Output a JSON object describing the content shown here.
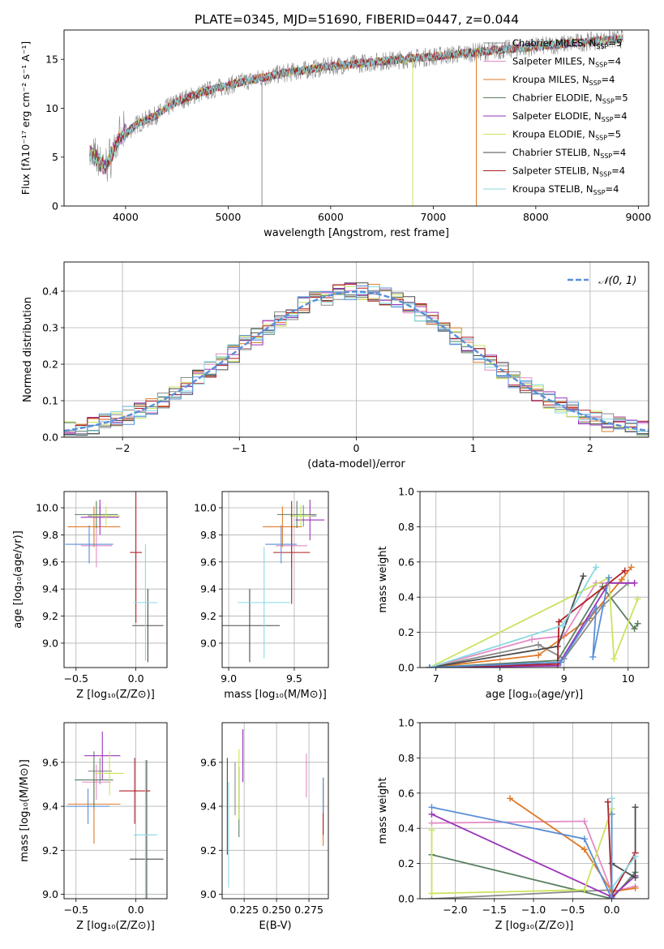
{
  "figure_title": "PLATE=0345, MJD=51690, FIBERID=0447, z=0.044",
  "colors": {
    "Chabrier MILES": "#8a8a8a",
    "Salpeter MILES": "#e38cc6",
    "Kroupa MILES": "#e07a28",
    "Chabrier ELODIE": "#5a7f62",
    "Salpeter ELODIE": "#9a35b8",
    "Kroupa ELODIE": "#c9e45c",
    "Chabrier STELIB": "#4a4a4a",
    "Salpeter STELIB": "#b01f24",
    "Kroupa STELIB": "#8ad8e2",
    "gaussian": "#5a8fd6"
  },
  "chart_data": [
    {
      "id": "spectrum",
      "type": "line",
      "title": "PLATE=0345, MJD=51690, FIBERID=0447, z=0.044",
      "xlabel": "wavelength [Angstrom, rest frame]",
      "ylabel": "Flux [fλ10⁻¹⁷ erg cm⁻² s⁻¹ A⁻¹]",
      "xlim": [
        3400,
        9100
      ],
      "ylim": [
        0,
        18
      ],
      "xticks": [
        4000,
        5000,
        6000,
        7000,
        8000,
        9000
      ],
      "yticks": [
        0,
        5,
        10,
        15
      ],
      "legend_position": "top-right",
      "legend": [
        {
          "series": "Chabrier MILES",
          "label": "Chabrier MILES, N",
          "sub": "SSP",
          "tail": "=5"
        },
        {
          "series": "Salpeter MILES",
          "label": "Salpeter MILES, N",
          "sub": "SSP",
          "tail": "=4"
        },
        {
          "series": "Kroupa MILES",
          "label": "Kroupa MILES, N",
          "sub": "SSP",
          "tail": "=4"
        },
        {
          "series": "Chabrier ELODIE",
          "label": "Chabrier ELODIE, N",
          "sub": "SSP",
          "tail": "=5"
        },
        {
          "series": "Salpeter ELODIE",
          "label": "Salpeter ELODIE, N",
          "sub": "SSP",
          "tail": "=4"
        },
        {
          "series": "Kroupa ELODIE",
          "label": "Kroupa ELODIE, N",
          "sub": "SSP",
          "tail": "=5"
        },
        {
          "series": "Chabrier STELIB",
          "label": "Chabrier STELIB, N",
          "sub": "SSP",
          "tail": "=4"
        },
        {
          "series": "Salpeter STELIB",
          "label": "Salpeter STELIB, N",
          "sub": "SSP",
          "tail": "=4"
        },
        {
          "series": "Kroupa STELIB",
          "label": "Kroupa STELIB, N",
          "sub": "SSP",
          "tail": "=4"
        }
      ],
      "continuum": {
        "x": [
          3650,
          3800,
          3950,
          4100,
          4300,
          4500,
          4800,
          5100,
          5500,
          6000,
          6500,
          7000,
          7500,
          8000,
          8500,
          8850
        ],
        "y": [
          5.5,
          4.0,
          7.0,
          8.3,
          9.3,
          10.7,
          11.8,
          12.6,
          13.5,
          14.3,
          14.8,
          15.3,
          15.8,
          16.3,
          16.8,
          17.1
        ]
      },
      "dips": [
        {
          "series": "Kroupa ELODIE",
          "x": 6800,
          "y": 0
        },
        {
          "series": "Kroupa MILES",
          "x": 7420,
          "y": 0
        },
        {
          "series": "Chabrier MILES",
          "x": 5330,
          "y": 0
        }
      ],
      "grid": false
    },
    {
      "id": "residuals",
      "type": "line",
      "xlabel": "(data-model)/error",
      "ylabel": "Normed distribution",
      "xlim": [
        -2.5,
        2.5
      ],
      "ylim": [
        0,
        0.48
      ],
      "xticks": [
        -2,
        -1,
        0,
        1,
        2
      ],
      "yticks": [
        0.0,
        0.1,
        0.2,
        0.3,
        0.4
      ],
      "grid": true,
      "legend_position": "top-right",
      "legend_label": "𝒩(0, 1)",
      "gaussian": {
        "mean": 0,
        "sigma": 1
      }
    },
    {
      "id": "age-vs-Z",
      "type": "scatter",
      "xlabel": "Z [log₁₀(Z/Z⊙)]",
      "ylabel": "age  [log₁₀(age/yr)]",
      "xlim": [
        -0.6,
        0.26
      ],
      "ylim": [
        8.82,
        10.12
      ],
      "xticks": [
        -0.5,
        0.0
      ],
      "yticks": [
        9.0,
        9.2,
        9.4,
        9.6,
        9.8,
        10.0
      ],
      "grid": true,
      "points": [
        {
          "series": "Chabrier MILES",
          "x": -0.3,
          "y": 9.94,
          "xerr": 0.1,
          "yerr": 0.08
        },
        {
          "series": "Salpeter MILES",
          "x": -0.33,
          "y": 9.72,
          "xerr": 0.13,
          "yerr": 0.16
        },
        {
          "series": "Kroupa MILES",
          "x": -0.35,
          "y": 9.86,
          "xerr": 0.22,
          "yerr": 0.15
        },
        {
          "series": "Chabrier ELODIE",
          "x": -0.33,
          "y": 9.95,
          "xerr": 0.18,
          "yerr": 0.1
        },
        {
          "series": "Salpeter ELODIE",
          "x": -0.3,
          "y": 9.93,
          "xerr": 0.16,
          "yerr": 0.13
        },
        {
          "series": "Kroupa ELODIE",
          "x": -0.25,
          "y": 9.94,
          "xerr": 0.12,
          "yerr": 0.07
        },
        {
          "series": "Chabrier STELIB",
          "x": 0.1,
          "y": 9.13,
          "xerr": 0.13,
          "yerr": 0.27
        },
        {
          "series": "Salpeter STELIB",
          "x": 0.0,
          "y": 9.67,
          "xerr": 0.05,
          "yerr": 0.52
        },
        {
          "series": "Kroupa STELIB",
          "x": 0.08,
          "y": 9.3,
          "xerr": 0.1,
          "yerr": 0.43
        },
        {
          "series": "gaussian",
          "x": -0.39,
          "y": 9.73,
          "xerr": 0.2,
          "yerr": 0.14
        }
      ]
    },
    {
      "id": "age-vs-mass",
      "type": "scatter",
      "xlabel": "mass [log₁₀(M/M⊙)]",
      "ylabel": "",
      "xlim": [
        8.95,
        9.76
      ],
      "ylim": [
        8.82,
        10.12
      ],
      "xticks": [
        9.0,
        9.5
      ],
      "yticks": [
        9.0,
        9.2,
        9.4,
        9.6,
        9.8,
        10.0
      ],
      "grid": true,
      "points": [
        {
          "series": "Chabrier MILES",
          "x": 9.57,
          "y": 9.94,
          "xerr": 0.1,
          "yerr": 0.08
        },
        {
          "series": "Salpeter MILES",
          "x": 9.48,
          "y": 9.72,
          "xerr": 0.12,
          "yerr": 0.16
        },
        {
          "series": "Kroupa MILES",
          "x": 9.41,
          "y": 9.86,
          "xerr": 0.15,
          "yerr": 0.15
        },
        {
          "series": "Chabrier ELODIE",
          "x": 9.52,
          "y": 9.95,
          "xerr": 0.15,
          "yerr": 0.1
        },
        {
          "series": "Salpeter ELODIE",
          "x": 9.62,
          "y": 9.91,
          "xerr": 0.11,
          "yerr": 0.15
        },
        {
          "series": "Kroupa ELODIE",
          "x": 9.55,
          "y": 9.94,
          "xerr": 0.08,
          "yerr": 0.08
        },
        {
          "series": "Chabrier STELIB",
          "x": 9.16,
          "y": 9.13,
          "xerr": 0.23,
          "yerr": 0.27
        },
        {
          "series": "Salpeter STELIB",
          "x": 9.48,
          "y": 9.67,
          "xerr": 0.14,
          "yerr": 0.38
        },
        {
          "series": "Kroupa STELIB",
          "x": 9.27,
          "y": 9.3,
          "xerr": 0.2,
          "yerr": 0.41
        },
        {
          "series": "gaussian",
          "x": 9.4,
          "y": 9.73,
          "xerr": 0.12,
          "yerr": 0.14
        }
      ]
    },
    {
      "id": "massweight-vs-age",
      "type": "line",
      "xlabel": "age  [log₁₀(age/yr)]",
      "ylabel": "mass weight",
      "xlim": [
        6.75,
        10.32
      ],
      "ylim": [
        0,
        1
      ],
      "xticks": [
        7,
        8,
        9,
        10
      ],
      "yticks": [
        0.0,
        0.2,
        0.4,
        0.6,
        0.8,
        1.0
      ],
      "grid": true,
      "series": [
        {
          "name": "Chabrier MILES",
          "x": [
            6.9,
            8.6,
            9.0,
            9.6,
            10.0
          ],
          "y": [
            0.0,
            0.13,
            0.05,
            0.35,
            0.48
          ]
        },
        {
          "name": "Salpeter MILES",
          "x": [
            6.9,
            8.5,
            9.0,
            9.5,
            10.1
          ],
          "y": [
            0.0,
            0.16,
            0.18,
            0.48,
            0.48
          ]
        },
        {
          "name": "Kroupa MILES",
          "x": [
            6.9,
            8.6,
            9.4,
            9.9,
            10.05
          ],
          "y": [
            0.0,
            0.07,
            0.28,
            0.5,
            0.57
          ]
        },
        {
          "name": "Chabrier ELODIE",
          "x": [
            6.9,
            8.9,
            9.6,
            10.1,
            10.15
          ],
          "y": [
            0.0,
            0.04,
            0.46,
            0.22,
            0.25
          ]
        },
        {
          "name": "Salpeter ELODIE",
          "x": [
            6.9,
            8.9,
            9.7,
            10.1
          ],
          "y": [
            0.0,
            0.01,
            0.48,
            0.48
          ]
        },
        {
          "name": "Kroupa ELODIE",
          "x": [
            6.9,
            9.7,
            9.78,
            10.15
          ],
          "y": [
            0.0,
            0.51,
            0.05,
            0.39
          ]
        },
        {
          "name": "Chabrier STELIB",
          "x": [
            6.9,
            8.9,
            9.3
          ],
          "y": [
            0.0,
            0.12,
            0.52
          ]
        },
        {
          "name": "Salpeter STELIB",
          "x": [
            6.9,
            8.9,
            8.92,
            9.95
          ],
          "y": [
            0.0,
            0.02,
            0.26,
            0.55
          ]
        },
        {
          "name": "Kroupa STELIB",
          "x": [
            6.9,
            8.98,
            9.5
          ],
          "y": [
            0.0,
            0.24,
            0.57
          ]
        },
        {
          "name": "gaussian",
          "x": [
            6.9,
            8.95,
            9.5,
            9.45,
            9.7
          ],
          "y": [
            0.0,
            0.03,
            0.34,
            0.06,
            0.51
          ]
        }
      ]
    },
    {
      "id": "mass-vs-Z",
      "type": "scatter",
      "xlabel": "Z [log₁₀(Z/Z⊙)]",
      "ylabel": "mass [log₁₀(M/M⊙)]",
      "xlim": [
        -0.6,
        0.26
      ],
      "ylim": [
        8.98,
        9.78
      ],
      "xticks": [
        -0.5,
        0.0
      ],
      "yticks": [
        9.0,
        9.2,
        9.4,
        9.6
      ],
      "grid": true,
      "points": [
        {
          "series": "Chabrier MILES",
          "x": -0.3,
          "y": 9.56,
          "xerr": 0.1,
          "yerr": 0.06
        },
        {
          "series": "Salpeter MILES",
          "x": -0.33,
          "y": 9.51,
          "xerr": 0.12,
          "yerr": 0.08
        },
        {
          "series": "Kroupa MILES",
          "x": -0.35,
          "y": 9.41,
          "xerr": 0.22,
          "yerr": 0.18
        },
        {
          "series": "Chabrier ELODIE",
          "x": -0.35,
          "y": 9.52,
          "xerr": 0.16,
          "yerr": 0.13
        },
        {
          "series": "Salpeter ELODIE",
          "x": -0.28,
          "y": 9.63,
          "xerr": 0.15,
          "yerr": 0.11
        },
        {
          "series": "Kroupa ELODIE",
          "x": -0.22,
          "y": 9.55,
          "xerr": 0.12,
          "yerr": 0.1
        },
        {
          "series": "Chabrier STELIB",
          "x": 0.09,
          "y": 9.16,
          "xerr": 0.14,
          "yerr": 0.45
        },
        {
          "series": "Salpeter STELIB",
          "x": -0.01,
          "y": 9.47,
          "xerr": 0.13,
          "yerr": 0.15
        },
        {
          "series": "Kroupa STELIB",
          "x": 0.08,
          "y": 9.27,
          "xerr": 0.1,
          "yerr": 0.34
        },
        {
          "series": "gaussian",
          "x": -0.4,
          "y": 9.4,
          "xerr": 0.18,
          "yerr": 0.08
        }
      ]
    },
    {
      "id": "mass-vs-EBV",
      "type": "scatter",
      "xlabel": "E(B-V)",
      "ylabel": "",
      "xlim": [
        0.208,
        0.29
      ],
      "ylim": [
        8.98,
        9.78
      ],
      "xticks": [
        0.225,
        0.25,
        0.275
      ],
      "xtick_labels": [
        "0.225",
        "0.250",
        "0.275"
      ],
      "yticks": [
        9.0,
        9.2,
        9.4,
        9.6
      ],
      "grid": true,
      "points": [
        {
          "series": "Chabrier MILES",
          "x": 0.218,
          "y": 9.48,
          "yerr": 0.12
        },
        {
          "series": "Salpeter MILES",
          "x": 0.273,
          "y": 9.54,
          "yerr": 0.1
        },
        {
          "series": "Kroupa MILES",
          "x": 0.286,
          "y": 9.36,
          "yerr": 0.14
        },
        {
          "series": "Chabrier ELODIE",
          "x": 0.221,
          "y": 9.42,
          "yerr": 0.16
        },
        {
          "series": "Salpeter ELODIE",
          "x": 0.224,
          "y": 9.63,
          "yerr": 0.12
        },
        {
          "series": "Kroupa ELODIE",
          "x": 0.221,
          "y": 9.5,
          "yerr": 0.16
        },
        {
          "series": "Chabrier STELIB",
          "x": 0.212,
          "y": 9.4,
          "yerr": 0.22
        },
        {
          "series": "Salpeter STELIB",
          "x": 0.286,
          "y": 9.4,
          "yerr": 0.13
        },
        {
          "series": "Kroupa STELIB",
          "x": 0.213,
          "y": 9.27,
          "yerr": 0.24
        },
        {
          "series": "gaussian",
          "x": 0.286,
          "y": 9.45,
          "yerr": 0.08
        }
      ]
    },
    {
      "id": "massweight-vs-Z",
      "type": "line",
      "xlabel": "Z [log₁₀(Z/Z⊙)]",
      "ylabel": "mass weight",
      "xlim": [
        -2.45,
        0.47
      ],
      "ylim": [
        0,
        1
      ],
      "xticks": [
        -2.0,
        -1.5,
        -1.0,
        -0.5,
        0.0
      ],
      "yticks": [
        0.0,
        0.2,
        0.4,
        0.6,
        0.8,
        1.0
      ],
      "grid": true,
      "series": [
        {
          "name": "Chabrier MILES",
          "x": [
            -2.3,
            0.0,
            0.0
          ],
          "y": [
            0.0,
            0.05,
            0.48
          ]
        },
        {
          "name": "Salpeter MILES",
          "x": [
            -2.3,
            -0.35,
            0.0,
            0.3
          ],
          "y": [
            0.43,
            0.44,
            0.04,
            0.07
          ]
        },
        {
          "name": "Kroupa MILES",
          "x": [
            -1.3,
            -0.35,
            0.0,
            0.3
          ],
          "y": [
            0.57,
            0.28,
            0.04,
            0.06
          ]
        },
        {
          "name": "Chabrier ELODIE",
          "x": [
            -2.3,
            0.0,
            0.3
          ],
          "y": [
            0.25,
            0.0,
            0.15
          ]
        },
        {
          "name": "Salpeter ELODIE",
          "x": [
            -2.3,
            0.0,
            0.3
          ],
          "y": [
            0.48,
            0.01,
            0.13
          ]
        },
        {
          "name": "Kroupa ELODIE",
          "x": [
            -2.3,
            -2.3,
            -0.35,
            0.0
          ],
          "y": [
            0.39,
            0.03,
            0.05,
            0.51
          ]
        },
        {
          "name": "Chabrier STELIB",
          "x": [
            0.0,
            0.3,
            0.3
          ],
          "y": [
            0.2,
            0.12,
            0.52
          ]
        },
        {
          "name": "Salpeter STELIB",
          "x": [
            -0.05,
            0.0,
            0.3
          ],
          "y": [
            0.55,
            0.02,
            0.26
          ]
        },
        {
          "name": "Kroupa STELIB",
          "x": [
            0.0,
            0.0,
            0.3
          ],
          "y": [
            0.57,
            0.06,
            0.24
          ]
        },
        {
          "name": "gaussian",
          "x": [
            -2.3,
            -0.35,
            0.0,
            0.0
          ],
          "y": [
            0.52,
            0.34,
            0.0,
            0.48
          ]
        }
      ]
    }
  ]
}
